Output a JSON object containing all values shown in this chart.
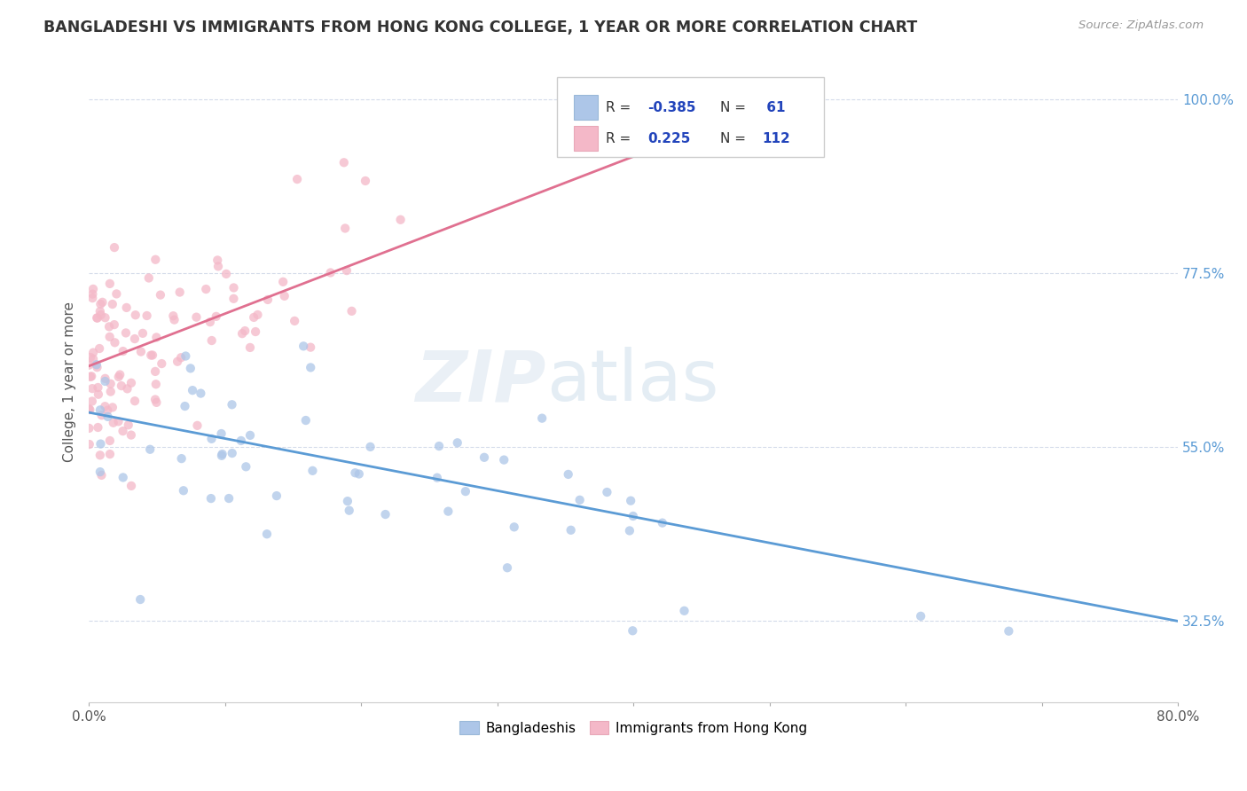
{
  "title": "BANGLADESHI VS IMMIGRANTS FROM HONG KONG COLLEGE, 1 YEAR OR MORE CORRELATION CHART",
  "source": "Source: ZipAtlas.com",
  "ylabel": "College, 1 year or more",
  "xlim": [
    0.0,
    0.8
  ],
  "ylim": [
    0.22,
    1.05
  ],
  "x_ticks": [
    0.0,
    0.1,
    0.2,
    0.3,
    0.4,
    0.5,
    0.6,
    0.7,
    0.8
  ],
  "x_tick_labels": [
    "0.0%",
    "",
    "",
    "",
    "",
    "",
    "",
    "",
    "80.0%"
  ],
  "y_ticks": [
    0.325,
    0.55,
    0.775,
    1.0
  ],
  "y_tick_labels": [
    "32.5%",
    "55.0%",
    "77.5%",
    "100.0%"
  ],
  "r_bangladeshi": -0.385,
  "n_bangladeshi": 61,
  "r_hongkong": 0.225,
  "n_hongkong": 112,
  "bangladeshi_color": "#adc6e8",
  "hongkong_color": "#f4b8c8",
  "trend_bangladeshi_color": "#5b9bd5",
  "trend_hongkong_color": "#e07090",
  "background_color": "#ffffff",
  "grid_color": "#d0d8e8",
  "trend_b_x0": 0.0,
  "trend_b_x1": 0.8,
  "trend_b_y0": 0.595,
  "trend_b_y1": 0.325,
  "trend_hk_x0": 0.0,
  "trend_hk_x1": 0.45,
  "trend_hk_y0": 0.655,
  "trend_hk_y1": 0.96
}
